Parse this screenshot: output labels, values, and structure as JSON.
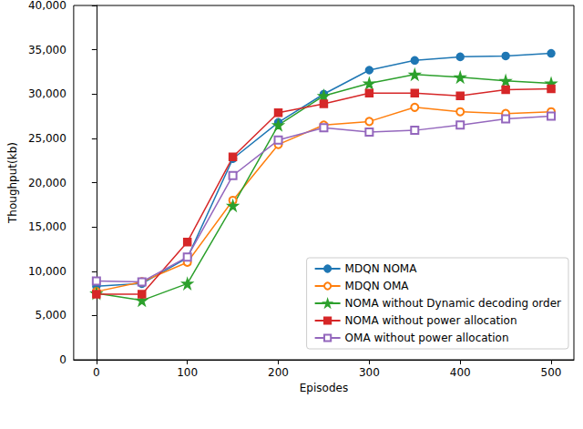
{
  "chart_data": {
    "type": "line",
    "x_label": "Episodes",
    "y_label": "Thoughput(kb)",
    "x": [
      0,
      50,
      100,
      150,
      200,
      250,
      300,
      350,
      400,
      450,
      500
    ],
    "xlim": [
      -25,
      525
    ],
    "xticks": [
      0,
      100,
      200,
      300,
      400,
      500
    ],
    "ylim": [
      0,
      40000
    ],
    "yticks": [
      0,
      5000,
      10000,
      15000,
      20000,
      25000,
      30000,
      35000,
      40000
    ],
    "grid": false,
    "legend": "lower right",
    "series": [
      {
        "name": "MDQN NOMA",
        "color": "#1f77b4",
        "marker": "circle",
        "values": [
          8300,
          8600,
          11500,
          22700,
          26800,
          30000,
          32700,
          33800,
          34200,
          34300,
          34600
        ]
      },
      {
        "name": "MDQN OMA",
        "color": "#ff7f0e",
        "marker": "open_circle",
        "values": [
          7700,
          8800,
          11000,
          18000,
          24300,
          26500,
          26900,
          28500,
          28000,
          27800,
          28000
        ]
      },
      {
        "name": "NOMA without Dynamic decoding order",
        "color": "#2ca02c",
        "marker": "star",
        "values": [
          7500,
          6700,
          8600,
          17400,
          26500,
          29800,
          31200,
          32200,
          31900,
          31500,
          31200
        ]
      },
      {
        "name": "NOMA without power allocation",
        "color": "#d62728",
        "marker": "square",
        "values": [
          7400,
          7400,
          13300,
          22900,
          27900,
          28900,
          30100,
          30100,
          29800,
          30500,
          30600
        ]
      },
      {
        "name": "OMA without power allocation",
        "color": "#9467bd",
        "marker": "open_square",
        "values": [
          8900,
          8800,
          11600,
          20800,
          24800,
          26200,
          25700,
          25900,
          26500,
          27200,
          27500
        ]
      }
    ]
  }
}
